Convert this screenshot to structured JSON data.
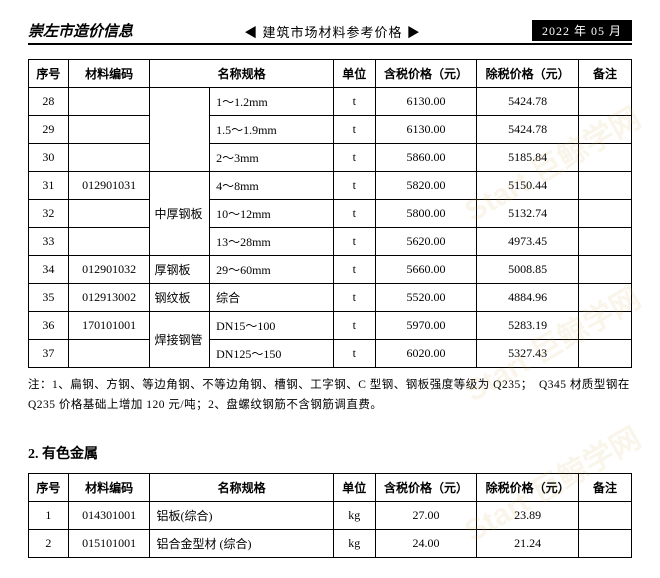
{
  "header": {
    "left": "崇左市造价信息",
    "center": "◀ 建筑市场材料参考价格 ▶",
    "right": "2022 年 05 月"
  },
  "table1": {
    "columns": [
      "序号",
      "材料编码",
      "名称规格",
      "单位",
      "含税价格（元）",
      "除税价格（元）",
      "备注"
    ],
    "name_col_header": "名称规格",
    "rows": [
      {
        "seq": "28",
        "code": "",
        "mat": "",
        "spec": "1～1.2mm",
        "unit": "t",
        "p1": "6130.00",
        "p2": "5424.78",
        "remark": ""
      },
      {
        "seq": "29",
        "code": "",
        "mat": "",
        "spec": "1.5～1.9mm",
        "unit": "t",
        "p1": "6130.00",
        "p2": "5424.78",
        "remark": ""
      },
      {
        "seq": "30",
        "code": "",
        "mat": "",
        "spec": "2～3mm",
        "unit": "t",
        "p1": "5860.00",
        "p2": "5185.84",
        "remark": ""
      },
      {
        "seq": "31",
        "code": "012901031",
        "mat": "",
        "spec": "4～8mm",
        "unit": "t",
        "p1": "5820.00",
        "p2": "5150.44",
        "remark": ""
      },
      {
        "seq": "32",
        "code": "",
        "mat": "中厚钢板",
        "spec": "10～12mm",
        "unit": "t",
        "p1": "5800.00",
        "p2": "5132.74",
        "remark": ""
      },
      {
        "seq": "33",
        "code": "",
        "mat": "",
        "spec": "13～28mm",
        "unit": "t",
        "p1": "5620.00",
        "p2": "4973.45",
        "remark": ""
      },
      {
        "seq": "34",
        "code": "012901032",
        "mat": "厚钢板",
        "spec": "29～60mm",
        "unit": "t",
        "p1": "5660.00",
        "p2": "5008.85",
        "remark": ""
      },
      {
        "seq": "35",
        "code": "012913002",
        "mat": "钢纹板",
        "spec": "综合",
        "unit": "t",
        "p1": "5520.00",
        "p2": "4884.96",
        "remark": ""
      },
      {
        "seq": "36",
        "code": "170101001",
        "mat": "",
        "spec": "DN15～100",
        "unit": "t",
        "p1": "5970.00",
        "p2": "5283.19",
        "remark": ""
      },
      {
        "seq": "37",
        "code": "",
        "mat": "焊接钢管",
        "spec": "DN125～150",
        "unit": "t",
        "p1": "6020.00",
        "p2": "5327.43",
        "remark": ""
      }
    ],
    "mat_groups": [
      {
        "start": 0,
        "span": 3,
        "label": ""
      },
      {
        "start": 3,
        "span": 3,
        "label": "中厚钢板"
      },
      {
        "start": 6,
        "span": 1,
        "label": "厚钢板"
      },
      {
        "start": 7,
        "span": 1,
        "label": "钢纹板"
      },
      {
        "start": 8,
        "span": 2,
        "label": "焊接钢管"
      }
    ]
  },
  "note": "注：1、扁钢、方钢、等边角钢、不等边角钢、槽钢、工字钢、C 型钢、钢板强度等级为 Q235；　Q345 材质型钢在 Q235 价格基础上增加 120 元/吨；2、盘螺纹钢筋不含钢筋调直费。",
  "section2_title": "2. 有色金属",
  "table2": {
    "columns": [
      "序号",
      "材料编码",
      "名称规格",
      "单位",
      "含税价格（元）",
      "除税价格（元）",
      "备注"
    ],
    "rows": [
      {
        "seq": "1",
        "code": "014301001",
        "name": "铝板(综合)",
        "unit": "kg",
        "p1": "27.00",
        "p2": "23.89",
        "remark": ""
      },
      {
        "seq": "2",
        "code": "015101001",
        "name": "铝合金型材 (综合)",
        "unit": "kg",
        "p1": "24.00",
        "p2": "21.24",
        "remark": ""
      }
    ]
  },
  "watermark": "Start 巨鲸学网"
}
